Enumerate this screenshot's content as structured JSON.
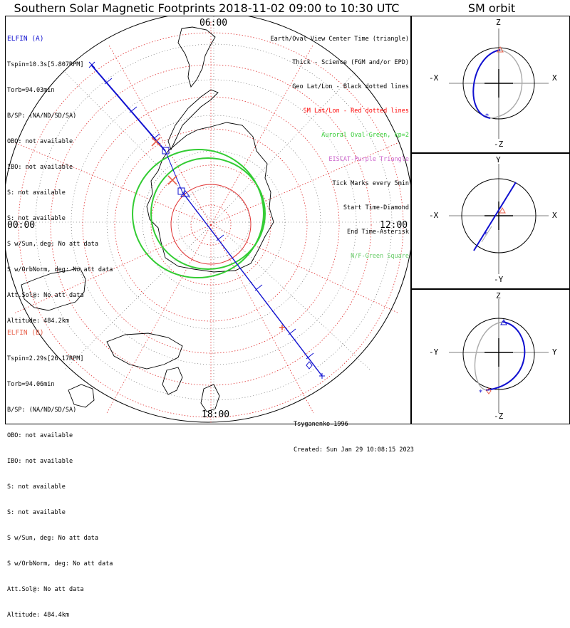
{
  "title": "Southern Solar Magnetic Footprints 2018-11-02 09:00 to 10:30 UTC",
  "orbit_title": "SM orbit",
  "clock_labels": {
    "top": "06:00",
    "left": "00:00",
    "right": "12:00",
    "bottom": "18:00"
  },
  "elfin_a": {
    "name": "ELFIN (A)",
    "color": "#1010d0",
    "lines": [
      "Tspin=10.3s[5.807RPM]",
      "Torb=94.03min",
      "B/SP: (NA/ND/SD/SA)",
      "OBO: not available",
      "IBO: not available",
      "S: not available",
      "S: not available",
      "S w/Sun, deg: No att data",
      "S w/OrbNorm, deg: No att data",
      "Att.Sol@: No att data",
      "Altitude: 484.2km"
    ]
  },
  "elfin_b": {
    "name": "ELFIN (B)",
    "color": "#e8604a",
    "lines": [
      "Tspin=2.29s[26.17RPM]",
      "Torb=94.06min",
      "B/SP: (NA/ND/SD/SA)",
      "OBO: not available",
      "IBO: not available",
      "S: not available",
      "S: not available",
      "S w/Sun, deg: No att data",
      "S w/OrbNorm, deg: No att data",
      "Att.Sol@: No att data",
      "Altitude: 484.4km"
    ]
  },
  "legend": [
    {
      "text": "Earth/Oval View Center Time (triangle)",
      "color": "#000000"
    },
    {
      "text": "Thick - Science (FGM and/or EPD)",
      "color": "#000000"
    },
    {
      "text": "Geo Lat/Lon - Black dotted lines",
      "color": "#000000"
    },
    {
      "text": "SM Lat/Lon - Red dotted lines",
      "color": "#ff0000"
    },
    {
      "text": "Auroral Oval-Green, kp=2",
      "color": "#33cc33"
    },
    {
      "text": "EISCAT-Purple Triangle",
      "color": "#cc66cc"
    },
    {
      "text": "Tick Marks every 5min",
      "color": "#000000"
    },
    {
      "text": "Start Time-Diamond",
      "color": "#000000"
    },
    {
      "text": "End Time-Asterisk",
      "color": "#000000"
    },
    {
      "text": "N/F-Green Square",
      "color": "#66cc66"
    }
  ],
  "footer": {
    "model": "Tsyganenko-1996",
    "created": "Created: Sun Jan 29 10:08:15 2023"
  },
  "orbit_panels": [
    {
      "top": "Z",
      "bottom": "-Z",
      "left": "-X",
      "right": "X"
    },
    {
      "top": "Y",
      "bottom": "-Y",
      "left": "-X",
      "right": "X"
    },
    {
      "top": "Z",
      "bottom": "-Z",
      "left": "-Y",
      "right": "Y"
    }
  ],
  "colors": {
    "track": "#1010d0",
    "oval": "#33cc33",
    "sm_grid": "#e03030",
    "marker_b": "#e8604a"
  }
}
